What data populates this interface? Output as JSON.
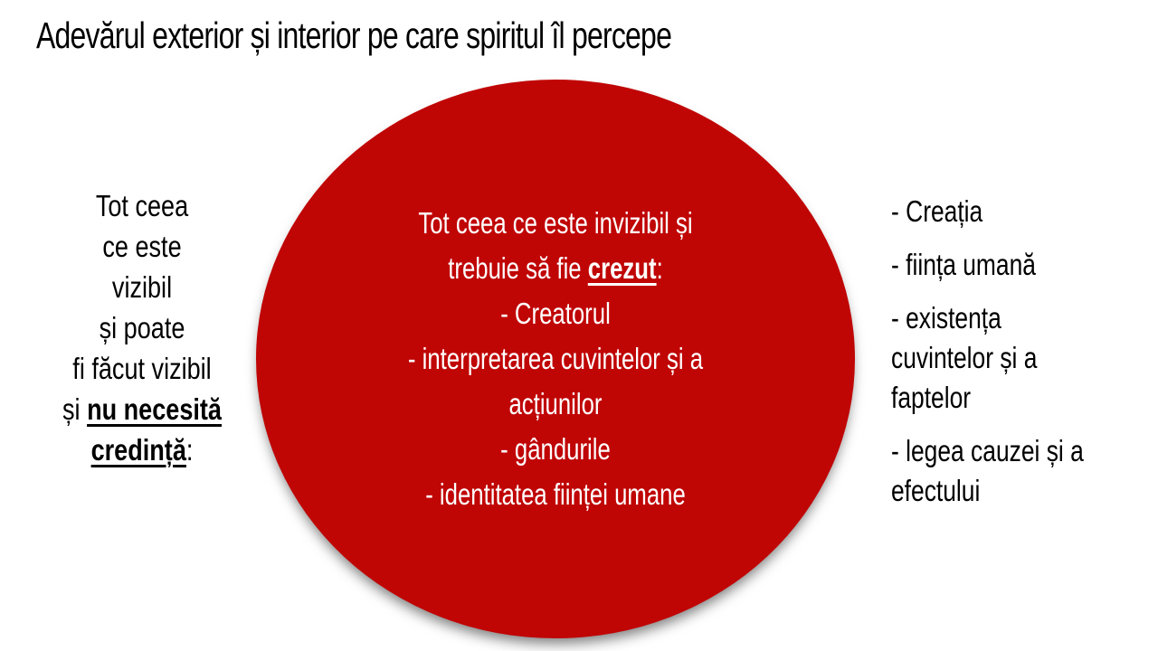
{
  "title": "Adevărul exterior și interior pe care spiritul îl percepe",
  "colors": {
    "circle_fill": "#C00505",
    "circle_text": "#FFFFFF",
    "body_text": "#000000",
    "background": "#FFFFFF"
  },
  "left_panel": {
    "lines": [
      "Tot ceea",
      "ce este",
      "vizibil",
      "și poate",
      "fi făcut vizibil"
    ],
    "line6": {
      "normal": "și ",
      "emphasis": "nu necesită"
    },
    "line7": {
      "emphasis": "credință",
      "normal": ":"
    }
  },
  "circle": {
    "line1": "Tot ceea ce este invizibil și",
    "line2": {
      "normal": "trebuie să fie ",
      "emphasis": "crezut",
      "suffix": ":"
    },
    "list_lines": [
      "- Creatorul",
      "- interpretarea cuvintelor și a",
      "acțiunilor",
      "- gândurile",
      "- identitatea ființei umane"
    ]
  },
  "right_panel": {
    "items": [
      {
        "lines": [
          "- Creația"
        ]
      },
      {
        "lines": [
          "- ființa umană"
        ]
      },
      {
        "lines": [
          "- existența",
          "cuvintelor și a",
          "faptelor"
        ]
      },
      {
        "lines": [
          "- legea cauzei și a",
          "efectului"
        ]
      }
    ]
  }
}
